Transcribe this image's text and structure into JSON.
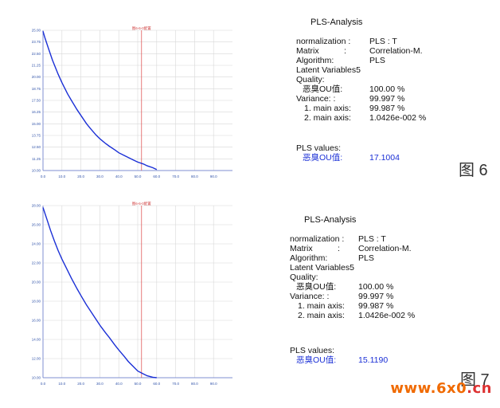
{
  "figures": [
    {
      "figure_label": "图 6",
      "chart_title": "图6-6-0配置",
      "panel": {
        "title": "PLS-Analysis",
        "normalization_label": "normalization :",
        "normalization_value": "PLS   : T",
        "matrix_label": "Matrix",
        "matrix_colon": ":",
        "matrix_value": "Correlation-M.",
        "algorithm_label": "Algorithm:",
        "algorithm_value": "PLS",
        "latent": "Latent Variables5",
        "quality": "Quality:",
        "ou_label": "恶臭OU值:",
        "ou_value": "100.00 %",
        "variance_label": "Variance: :",
        "variance_value": "99.997 %",
        "main1_label": "1. main axis:",
        "main1_value": "99.987 %",
        "main2_label": "2. main axis:",
        "main2_value": "1.0426e-002 %",
        "pls_values": "PLS  values:",
        "pls_label": "恶臭OU值:",
        "pls_value": "17.1004"
      },
      "chart_data": {
        "type": "line",
        "y_ticks": [
          "25.00",
          "23.75",
          "22.50",
          "21.25",
          "20.00",
          "18.75",
          "17.50",
          "16.25",
          "15.00",
          "13.75",
          "12.50",
          "11.25",
          "10.00"
        ],
        "x_ticks": [
          "0.0",
          "10.0",
          "20.0",
          "30.0",
          "40.0",
          "50.0",
          "60.0",
          "70.0",
          "80.0",
          "90.0"
        ],
        "xlim": [
          0,
          100
        ],
        "ylim": [
          10,
          25
        ],
        "vline_x": 52,
        "x": [
          0,
          1,
          3,
          5,
          8,
          10,
          13,
          15,
          18,
          20,
          23,
          25,
          28,
          30,
          33,
          35,
          38,
          40,
          43,
          45,
          48,
          50,
          53,
          55,
          58,
          60
        ],
        "y": [
          24.9,
          24.2,
          23.0,
          21.8,
          20.3,
          19.4,
          18.2,
          17.5,
          16.5,
          15.9,
          15.0,
          14.5,
          13.8,
          13.4,
          12.9,
          12.6,
          12.2,
          11.9,
          11.6,
          11.4,
          11.1,
          10.9,
          10.7,
          10.5,
          10.3,
          10.1
        ]
      }
    },
    {
      "figure_label": "图 7",
      "chart_title": "图6-6-0配置",
      "panel": {
        "title": "PLS-Analysis",
        "normalization_label": "normalization :",
        "normalization_value": "PLS   : T",
        "matrix_label": "Matrix",
        "matrix_colon": ":",
        "matrix_value": "Correlation-M.",
        "algorithm_label": "Algorithm:",
        "algorithm_value": "PLS",
        "latent": "Latent Variables5",
        "quality": "Quality:",
        "ou_label": "恶臭OU值:",
        "ou_value": "100.00 %",
        "variance_label": "Variance: :",
        "variance_value": "99.997 %",
        "main1_label": "1. main axis:",
        "main1_value": "99.987 %",
        "main2_label": "2. main axis:",
        "main2_value": "1.0426e-002 %",
        "pls_values": "PLS  values:",
        "pls_label": "恶臭OU值:",
        "pls_value": "15.1190"
      },
      "chart_data": {
        "type": "line",
        "y_ticks": [
          "28.00",
          "26.00",
          "24.00",
          "22.00",
          "20.00",
          "18.00",
          "16.00",
          "14.00",
          "12.00",
          "10.00"
        ],
        "x_ticks": [
          "0.0",
          "10.0",
          "20.0",
          "30.0",
          "40.0",
          "50.0",
          "60.0",
          "70.0",
          "80.0",
          "90.0"
        ],
        "xlim": [
          0,
          100
        ],
        "ylim": [
          10,
          28
        ],
        "vline_x": 52,
        "x": [
          0,
          2,
          4,
          6,
          8,
          10,
          12,
          15,
          18,
          20,
          23,
          25,
          28,
          30,
          33,
          35,
          38,
          40,
          43,
          45,
          48,
          50,
          53,
          55,
          58,
          60
        ],
        "y": [
          27.8,
          26.6,
          25.4,
          24.3,
          23.3,
          22.4,
          21.6,
          20.4,
          19.3,
          18.6,
          17.6,
          17.0,
          16.1,
          15.5,
          14.7,
          14.2,
          13.4,
          12.9,
          12.2,
          11.7,
          11.1,
          10.7,
          10.4,
          10.2,
          10.05,
          10.0
        ]
      }
    }
  ],
  "watermark": {
    "prefix": "www.",
    "main": "6x0",
    "suffix": ".cn"
  }
}
